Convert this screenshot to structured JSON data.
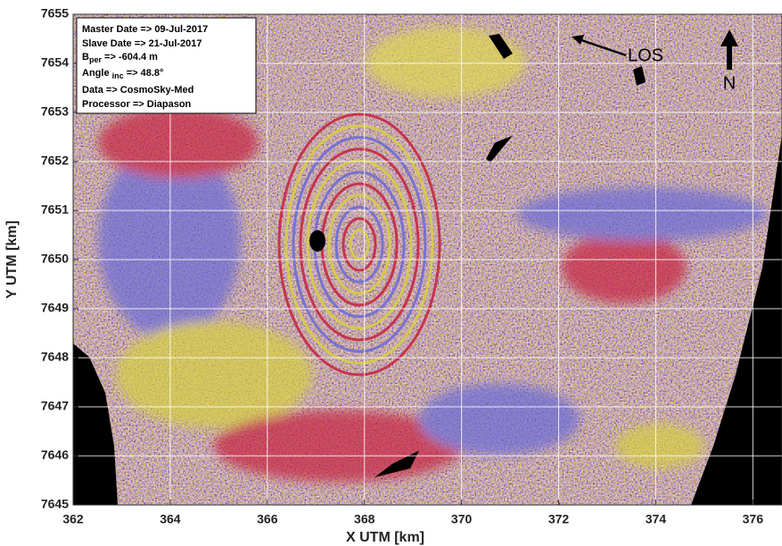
{
  "chart_data": {
    "type": "image",
    "xlabel": "X UTM [km]",
    "ylabel": "Y UTM [km]",
    "xlim": [
      362,
      376.6
    ],
    "ylim": [
      7645,
      7655
    ],
    "xticks": [
      362,
      364,
      366,
      368,
      370,
      372,
      374,
      376
    ],
    "yticks": [
      7645,
      7646,
      7647,
      7648,
      7649,
      7650,
      7651,
      7652,
      7653,
      7654,
      7655
    ],
    "grid": true,
    "info": [
      {
        "text": "Master Date => 09-Jul-2017"
      },
      {
        "text": "Slave Date => 21-Jul-2017"
      },
      {
        "main": "B",
        "sub": "per",
        "rest": " => -604.4 m"
      },
      {
        "main": "Angle ",
        "sub": "inc",
        "rest": " => 48.8°"
      },
      {
        "text": "Data => CosmoSky-Med"
      },
      {
        "text": "Processor => Diapason"
      }
    ],
    "los_label": "LOS",
    "north_label": "N"
  }
}
